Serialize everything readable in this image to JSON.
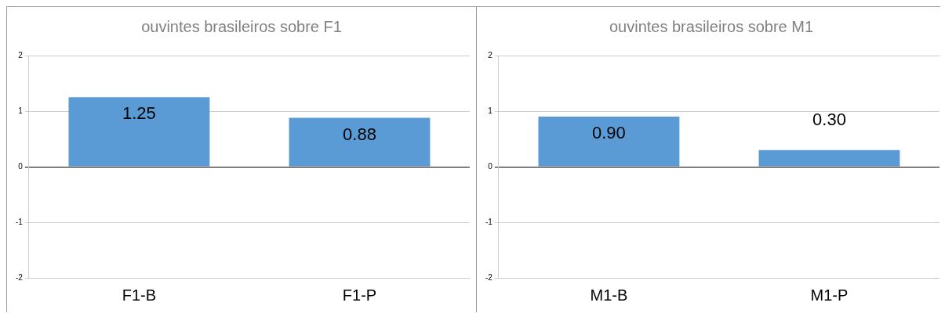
{
  "chart_data": [
    {
      "type": "bar",
      "title": "ouvintes brasileiros sobre F1",
      "categories": [
        "F1-B",
        "F1-P"
      ],
      "values": [
        1.25,
        0.88
      ],
      "value_labels": [
        "1.25",
        "0.88"
      ],
      "color": "#5b9bd5",
      "ylim": [
        -2,
        2
      ],
      "yticks": [
        -2,
        -1,
        0,
        1,
        2
      ],
      "grid": "y",
      "legend": false
    },
    {
      "type": "bar",
      "title": "ouvintes brasileiros sobre M1",
      "categories": [
        "M1-B",
        "M1-P"
      ],
      "values": [
        0.9,
        0.3
      ],
      "value_labels": [
        "0.90",
        "0.30"
      ],
      "color": "#5b9bd5",
      "ylim": [
        -2,
        2
      ],
      "yticks": [
        -2,
        -1,
        0,
        1,
        2
      ],
      "grid": "y",
      "legend": false
    }
  ]
}
